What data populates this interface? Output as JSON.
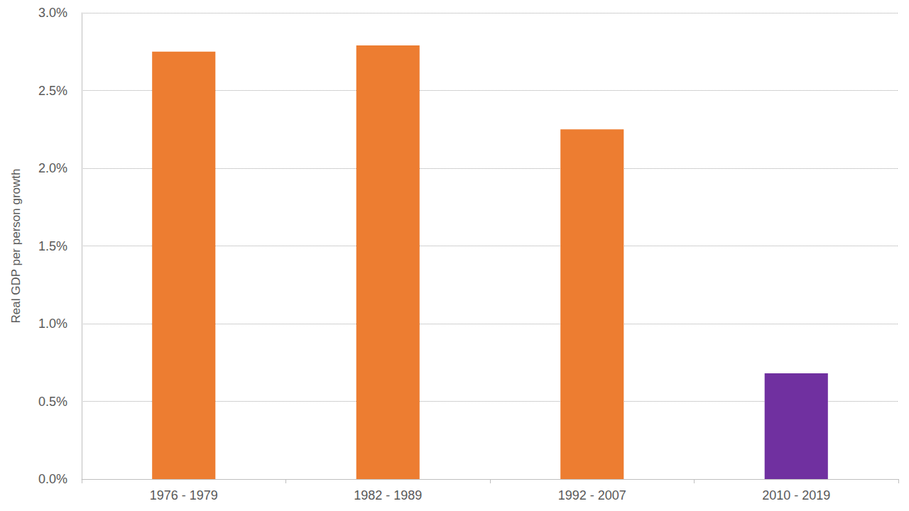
{
  "chart_data": {
    "type": "bar",
    "y_label": "Real GDP per person growth",
    "categories": [
      "1976 - 1979",
      "1982 - 1989",
      "1992 - 2007",
      "2010 - 2019"
    ],
    "values": [
      2.75,
      2.79,
      2.25,
      0.68
    ],
    "colors": [
      "#ed7d31",
      "#ed7d31",
      "#ed7d31",
      "#7030a0"
    ],
    "ylim": [
      0,
      3
    ],
    "yticks": [
      {
        "value": 0,
        "label": "0.0%"
      },
      {
        "value": 0.5,
        "label": "0.5%"
      },
      {
        "value": 1,
        "label": "1.0%"
      },
      {
        "value": 1.5,
        "label": "1.5%"
      },
      {
        "value": 2,
        "label": "2.0%"
      },
      {
        "value": 2.5,
        "label": "2.5%"
      },
      {
        "value": 3,
        "label": "3.0%"
      }
    ],
    "grid": true
  }
}
